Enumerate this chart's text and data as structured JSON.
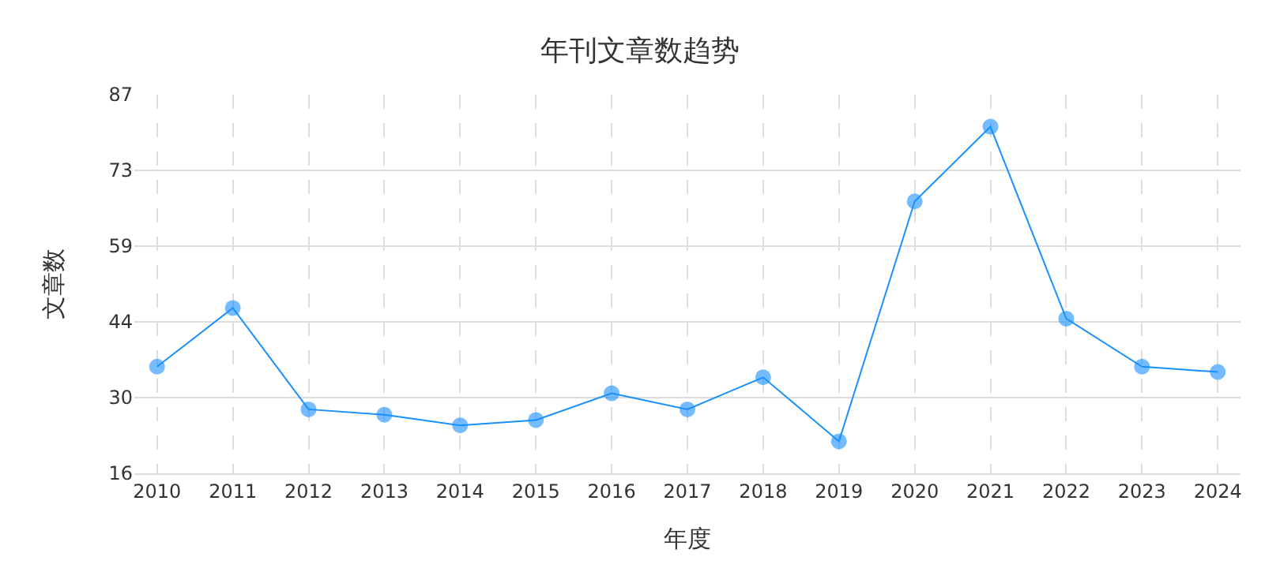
{
  "chart_data": {
    "type": "line",
    "title": "年刊文章数趋势",
    "xlabel": "年度",
    "ylabel": "文章数",
    "categories": [
      "2010",
      "2011",
      "2012",
      "2013",
      "2014",
      "2015",
      "2016",
      "2017",
      "2018",
      "2019",
      "2020",
      "2021",
      "2022",
      "2023",
      "2024"
    ],
    "series": [
      {
        "color": "#1890ff",
        "values": [
          36,
          47,
          28,
          27,
          25,
          26,
          31,
          28,
          34,
          22,
          67,
          81,
          45,
          36,
          35
        ]
      }
    ],
    "ylim": [
      16,
      87
    ],
    "yticks": [
      16,
      {
        "value": 30.2,
        "label": "30"
      },
      {
        "value": 44.4,
        "label": "44"
      },
      {
        "value": 58.6,
        "label": "59"
      },
      {
        "value": 72.8,
        "label": "73"
      },
      87
    ],
    "grid": true,
    "marker": "circle",
    "line_style": "solid"
  }
}
